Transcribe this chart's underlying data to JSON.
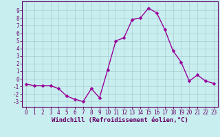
{
  "x": [
    0,
    1,
    2,
    3,
    4,
    5,
    6,
    7,
    8,
    9,
    10,
    11,
    12,
    13,
    14,
    15,
    16,
    17,
    18,
    19,
    20,
    21,
    22,
    23
  ],
  "y": [
    -0.7,
    -0.9,
    -0.9,
    -0.9,
    -1.3,
    -2.3,
    -2.7,
    -3.0,
    -1.3,
    -2.5,
    1.2,
    5.0,
    5.4,
    7.8,
    8.0,
    9.3,
    8.7,
    6.5,
    3.7,
    2.2,
    -0.3,
    0.5,
    -0.3,
    -0.6
  ],
  "line_color": "#990099",
  "marker": "D",
  "markersize": 2.5,
  "linewidth": 1.0,
  "xlabel": "Windchill (Refroidissement éolien,°C)",
  "xlabel_fontsize": 6.5,
  "xticks": [
    0,
    1,
    2,
    3,
    4,
    5,
    6,
    7,
    8,
    9,
    10,
    11,
    12,
    13,
    14,
    15,
    16,
    17,
    18,
    19,
    20,
    21,
    22,
    23
  ],
  "yticks": [
    -3,
    -2,
    -1,
    0,
    1,
    2,
    3,
    4,
    5,
    6,
    7,
    8,
    9
  ],
  "ylim": [
    -3.7,
    10.2
  ],
  "xlim": [
    -0.5,
    23.5
  ],
  "bg_color": "#c8eef0",
  "grid_color": "#aacccc",
  "tick_color": "#660066",
  "label_color": "#660066",
  "tick_fontsize": 5.5
}
